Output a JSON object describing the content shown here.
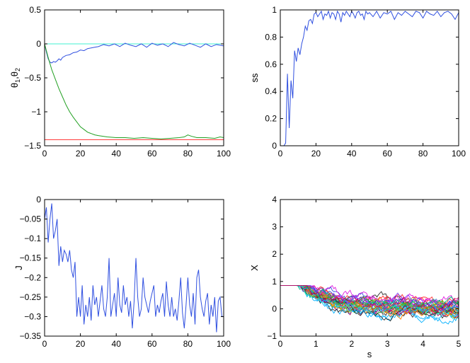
{
  "colors": {
    "blue": "#3050e0",
    "green": "#22a022",
    "red": "#ff3030",
    "cyan": "#40f0d0"
  },
  "chart_data": [
    {
      "id": "theta",
      "type": "line",
      "ylabel": {
        "main": "θ",
        "sub1": "1",
        "sep": ",θ",
        "sub2": "2"
      },
      "xlabel": "",
      "xlim": [
        0,
        100
      ],
      "ylim": [
        -1.5,
        0.5
      ],
      "xticks": [
        0,
        20,
        40,
        60,
        80,
        100
      ],
      "xtick_labels": [
        "0",
        "20",
        "40",
        "60",
        "80",
        "100"
      ],
      "yticks": [
        -1.5,
        -1,
        -0.5,
        0,
        0.5
      ],
      "ytick_labels": [
        "−1.5",
        "−1",
        "−0.5",
        "0",
        "0.5"
      ],
      "series": [
        {
          "color": "#40f0d0",
          "style": "constant",
          "x": [
            0,
            100
          ],
          "y": [
            0,
            0
          ]
        },
        {
          "color": "#ff3030",
          "style": "constant",
          "x": [
            0,
            100
          ],
          "y": [
            -1.41,
            -1.41
          ]
        },
        {
          "color": "#3050e0",
          "x": [
            0,
            1,
            2,
            3,
            4,
            5,
            6,
            7,
            8,
            9,
            10,
            12,
            14,
            16,
            18,
            20,
            22,
            24,
            26,
            28,
            30,
            33,
            36,
            39,
            42,
            45,
            48,
            51,
            54,
            57,
            60,
            63,
            66,
            69,
            72,
            75,
            78,
            81,
            84,
            87,
            90,
            93,
            96,
            100
          ],
          "y": [
            0,
            -0.12,
            -0.22,
            -0.27,
            -0.28,
            -0.26,
            -0.27,
            -0.25,
            -0.22,
            -0.24,
            -0.2,
            -0.17,
            -0.16,
            -0.13,
            -0.12,
            -0.09,
            -0.1,
            -0.07,
            -0.06,
            -0.05,
            -0.04,
            -0.01,
            -0.03,
            0.0,
            -0.04,
            0.01,
            -0.02,
            -0.04,
            0.0,
            -0.05,
            0.01,
            -0.02,
            0.0,
            -0.04,
            0.02,
            -0.01,
            -0.03,
            0.01,
            -0.02,
            -0.05,
            0.0,
            -0.04,
            -0.01,
            -0.03
          ]
        },
        {
          "color": "#22a022",
          "x": [
            0,
            2,
            4,
            6,
            8,
            10,
            12,
            14,
            16,
            18,
            20,
            22,
            24,
            26,
            28,
            30,
            35,
            40,
            45,
            50,
            55,
            60,
            65,
            70,
            75,
            78,
            80,
            82,
            85,
            90,
            95,
            98,
            100
          ],
          "y": [
            0,
            -0.2,
            -0.38,
            -0.52,
            -0.66,
            -0.78,
            -0.9,
            -1.0,
            -1.08,
            -1.15,
            -1.22,
            -1.26,
            -1.3,
            -1.32,
            -1.34,
            -1.35,
            -1.37,
            -1.38,
            -1.38,
            -1.39,
            -1.38,
            -1.39,
            -1.4,
            -1.39,
            -1.38,
            -1.37,
            -1.34,
            -1.36,
            -1.38,
            -1.38,
            -1.39,
            -1.37,
            -1.38
          ]
        }
      ]
    },
    {
      "id": "ss",
      "type": "line",
      "ylabel": "ss",
      "xlabel": "",
      "xlim": [
        0,
        100
      ],
      "ylim": [
        0,
        1
      ],
      "xticks": [
        0,
        20,
        40,
        60,
        80,
        100
      ],
      "xtick_labels": [
        "0",
        "20",
        "40",
        "60",
        "80",
        "100"
      ],
      "yticks": [
        0,
        0.2,
        0.4,
        0.6,
        0.8,
        1
      ],
      "ytick_labels": [
        "0",
        "0.2",
        "0.4",
        "0.6",
        "0.8",
        "1"
      ],
      "series": [
        {
          "color": "#3050e0",
          "x": [
            0,
            1,
            2,
            3,
            4,
            5,
            6,
            7,
            8,
            9,
            10,
            11,
            12,
            13,
            14,
            15,
            16,
            17,
            18,
            19,
            20,
            21,
            22,
            23,
            24,
            25,
            26,
            27,
            28,
            29,
            30,
            31,
            32,
            33,
            34,
            35,
            36,
            37,
            38,
            39,
            40,
            41,
            42,
            43,
            44,
            45,
            46,
            47,
            48,
            49,
            50,
            52,
            54,
            56,
            58,
            60,
            62,
            64,
            66,
            68,
            70,
            72,
            74,
            76,
            78,
            80,
            82,
            84,
            86,
            88,
            90,
            92,
            94,
            96,
            98,
            100
          ],
          "y": [
            0,
            0,
            0,
            0.02,
            0.53,
            0.13,
            0.48,
            0.35,
            0.7,
            0.62,
            0.72,
            0.67,
            0.75,
            0.8,
            0.88,
            0.85,
            0.92,
            0.93,
            0.9,
            0.97,
            0.98,
            0.95,
            0.97,
            0.99,
            0.93,
            0.97,
            0.96,
            0.99,
            0.94,
            0.98,
            0.97,
            0.93,
            0.99,
            0.97,
            0.91,
            0.98,
            0.96,
            0.99,
            0.97,
            0.95,
            0.99,
            0.97,
            0.94,
            0.98,
            0.99,
            0.96,
            0.97,
            0.93,
            0.99,
            0.97,
            0.98,
            0.95,
            0.99,
            0.94,
            0.98,
            0.97,
            0.99,
            0.93,
            0.98,
            0.96,
            0.99,
            0.97,
            0.95,
            0.99,
            0.98,
            0.94,
            0.99,
            0.97,
            0.96,
            0.99,
            0.95,
            0.98,
            0.99,
            0.97,
            0.93,
            0.98
          ]
        }
      ]
    },
    {
      "id": "J",
      "type": "line",
      "ylabel": "J",
      "xlabel": "",
      "xlim": [
        0,
        100
      ],
      "ylim": [
        -0.35,
        0
      ],
      "xticks": [
        0,
        20,
        40,
        60,
        80,
        100
      ],
      "xtick_labels": [
        "0",
        "20",
        "40",
        "60",
        "80",
        "100"
      ],
      "yticks": [
        -0.35,
        -0.3,
        -0.25,
        -0.2,
        -0.15,
        -0.1,
        -0.05,
        0
      ],
      "ytick_labels": [
        "−0.35",
        "−0.3",
        "−0.25",
        "−0.2",
        "−0.15",
        "−0.1",
        "−0.05",
        "0"
      ],
      "series": [
        {
          "color": "#3050e0",
          "x": [
            0,
            1,
            2,
            3,
            4,
            5,
            6,
            7,
            8,
            9,
            10,
            11,
            12,
            13,
            14,
            15,
            16,
            17,
            18,
            19,
            20,
            21,
            22,
            23,
            24,
            25,
            26,
            27,
            28,
            29,
            30,
            31,
            32,
            33,
            34,
            35,
            36,
            37,
            38,
            39,
            40,
            41,
            42,
            43,
            44,
            45,
            46,
            47,
            48,
            49,
            50,
            51,
            52,
            53,
            54,
            55,
            56,
            57,
            58,
            59,
            60,
            61,
            62,
            63,
            64,
            65,
            66,
            67,
            68,
            69,
            70,
            71,
            72,
            73,
            74,
            75,
            76,
            77,
            78,
            79,
            80,
            81,
            82,
            83,
            84,
            85,
            86,
            87,
            88,
            89,
            90,
            91,
            92,
            93,
            94,
            95,
            96,
            97,
            98,
            99,
            100
          ],
          "y": [
            -0.05,
            -0.02,
            -0.11,
            -0.05,
            -0.01,
            -0.1,
            -0.08,
            -0.05,
            -0.17,
            -0.12,
            -0.16,
            -0.13,
            -0.14,
            -0.16,
            -0.13,
            -0.18,
            -0.2,
            -0.16,
            -0.3,
            -0.25,
            -0.3,
            -0.22,
            -0.32,
            -0.27,
            -0.3,
            -0.25,
            -0.31,
            -0.22,
            -0.27,
            -0.25,
            -0.3,
            -0.26,
            -0.22,
            -0.28,
            -0.3,
            -0.25,
            -0.15,
            -0.3,
            -0.27,
            -0.24,
            -0.3,
            -0.2,
            -0.27,
            -0.29,
            -0.22,
            -0.27,
            -0.25,
            -0.3,
            -0.26,
            -0.33,
            -0.26,
            -0.15,
            -0.25,
            -0.3,
            -0.28,
            -0.2,
            -0.25,
            -0.27,
            -0.29,
            -0.26,
            -0.24,
            -0.22,
            -0.3,
            -0.27,
            -0.29,
            -0.26,
            -0.24,
            -0.3,
            -0.21,
            -0.27,
            -0.3,
            -0.25,
            -0.3,
            -0.28,
            -0.31,
            -0.26,
            -0.2,
            -0.29,
            -0.33,
            -0.27,
            -0.2,
            -0.27,
            -0.3,
            -0.24,
            -0.32,
            -0.2,
            -0.18,
            -0.25,
            -0.28,
            -0.3,
            -0.26,
            -0.24,
            -0.32,
            -0.27,
            -0.3,
            -0.25,
            -0.34,
            -0.26,
            -0.25,
            -0.3,
            -0.3
          ]
        }
      ]
    },
    {
      "id": "X",
      "type": "line",
      "ylabel": "X",
      "xlabel": "s",
      "xlim": [
        0,
        5
      ],
      "ylim": [
        -1,
        4
      ],
      "xticks": [
        0,
        1,
        2,
        3,
        4,
        5
      ],
      "xtick_labels": [
        "0",
        "1",
        "2",
        "3",
        "4",
        "5"
      ],
      "yticks": [
        -1,
        0,
        1,
        2,
        3,
        4
      ],
      "ytick_labels": [
        "−1",
        "0",
        "1",
        "2",
        "3",
        "4"
      ],
      "start": 2,
      "band": {
        "min": -0.6,
        "max": 0.85
      },
      "palette": [
        "#3050e0",
        "#22a022",
        "#ff3030",
        "#40f0d0",
        "#e020e0",
        "#a0a000",
        "#303030",
        "#ff8000",
        "#00b0ff",
        "#8040ff",
        "#00c080",
        "#c00060"
      ],
      "num_paths": 36
    }
  ]
}
